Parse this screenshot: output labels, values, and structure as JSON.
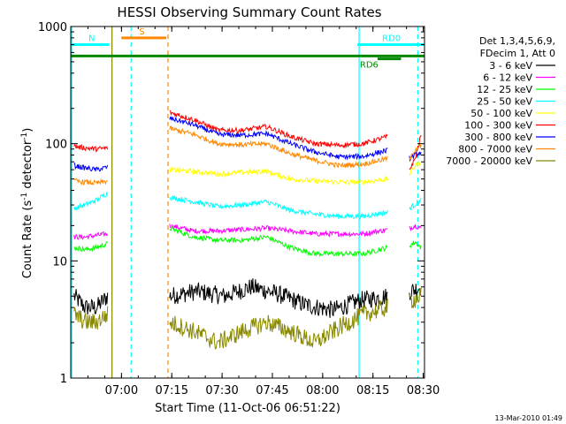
{
  "chart_data": {
    "type": "line",
    "title": "HESSI Observing Summary Count Rates",
    "xlabel": "Start Time (11-Oct-06 06:51:22)",
    "ylabel_parts": [
      "Count Rate (s",
      "-1",
      " detector",
      "-1",
      ")"
    ],
    "yscale": "log",
    "ylim": [
      1,
      1000
    ],
    "xlim_minutes": [
      -6.5,
      99
    ],
    "x_ticks": [
      {
        "label": "07:00",
        "t": 8.63
      },
      {
        "label": "07:15",
        "t": 23.63
      },
      {
        "label": "07:30",
        "t": 38.63
      },
      {
        "label": "07:45",
        "t": 53.63
      },
      {
        "label": "08:00",
        "t": 68.63
      },
      {
        "label": "08:15",
        "t": 83.63
      },
      {
        "label": "08:30",
        "t": 98.63
      }
    ],
    "y_ticks": [
      {
        "label": "1",
        "v": 1
      },
      {
        "label": "10",
        "v": 10
      },
      {
        "label": "100",
        "v": 100
      },
      {
        "label": "1000",
        "v": 1000
      }
    ],
    "legend_header": [
      "Det 1,3,4,5,6,9,",
      "FDecim 1, Att 0"
    ],
    "series": [
      {
        "name": "3 - 6 keV",
        "color": "#000000",
        "seg1": [
          5,
          4,
          4,
          5
        ],
        "seg2": [
          5,
          5.5,
          5,
          6,
          5.2,
          4.2,
          3.8,
          4.6,
          5
        ],
        "seg3": [
          5.5,
          6
        ]
      },
      {
        "name": "6 - 12 keV",
        "color": "#ff00ff",
        "seg1": [
          16,
          16,
          16.5,
          17
        ],
        "seg2": [
          20,
          18,
          18,
          18.5,
          19,
          18,
          17,
          17,
          17,
          18.5
        ],
        "seg3": [
          19,
          20,
          19
        ]
      },
      {
        "name": "12 - 25 keV",
        "color": "#00ff00",
        "seg1": [
          13,
          12.5,
          13,
          14
        ],
        "seg2": [
          19,
          16,
          15,
          15,
          16,
          13,
          11.5,
          11.5,
          11.5,
          13
        ],
        "seg3": [
          13.5,
          14.5,
          13
        ]
      },
      {
        "name": "25 - 50 keV",
        "color": "#00ffff",
        "seg1": [
          28,
          30,
          33,
          38
        ],
        "seg2": [
          35,
          32,
          29,
          30,
          32,
          27,
          25,
          24,
          24,
          26
        ],
        "seg3": [
          28,
          33
        ]
      },
      {
        "name": "50 - 100 keV",
        "color": "#ffff00",
        "seg1": [],
        "seg2": [
          60,
          58,
          55,
          57,
          58,
          50,
          48,
          47,
          47,
          50
        ],
        "seg3": [
          55,
          65,
          70
        ]
      },
      {
        "name": "100 - 300 keV",
        "color": "#ff0000",
        "seg1": [
          95,
          92,
          90,
          92
        ],
        "seg2": [
          185,
          160,
          130,
          130,
          140,
          115,
          100,
          97,
          100,
          115
        ],
        "seg3": [
          60,
          75,
          120
        ]
      },
      {
        "name": "300 - 800 keV",
        "color": "#0000ff",
        "seg1": [
          65,
          62,
          60,
          63
        ],
        "seg2": [
          165,
          145,
          120,
          118,
          122,
          100,
          85,
          77,
          78,
          88
        ],
        "seg3": [
          75,
          85
        ]
      },
      {
        "name": "800 - 7000 keV",
        "color": "#ff8800",
        "seg1": [
          48,
          47,
          46,
          48
        ],
        "seg2": [
          135,
          120,
          100,
          98,
          100,
          82,
          72,
          65,
          67,
          75
        ],
        "seg3": [
          72,
          90,
          95
        ]
      },
      {
        "name": "7000 - 20000 keV",
        "color": "#888800",
        "seg1": [
          3.5,
          3,
          3,
          3.5
        ],
        "seg2": [
          3,
          2.5,
          2,
          2.5,
          3,
          2.5,
          2,
          2.7,
          3.5,
          4
        ],
        "seg3": [
          4.5,
          5
        ]
      }
    ],
    "annotations": [
      {
        "label": "S",
        "color": "#ff8800",
        "t0": 8.6,
        "t1": 22.0,
        "v": 800
      },
      {
        "label": "N",
        "color": "#00ffff",
        "t0": -6.5,
        "t1": 5.0,
        "v": 700
      },
      {
        "label": "RD0",
        "color": "#00ffff",
        "t0": 79.0,
        "t1": 99.0,
        "v": 700
      },
      {
        "label": "RD6",
        "color": "#008800",
        "t0": 85.0,
        "t1": 92.0,
        "v": 530
      }
    ],
    "vertical_markers": [
      {
        "t": -6.2,
        "color": "#00ffff",
        "style": "solid"
      },
      {
        "t": 5.8,
        "color": "#888800",
        "style": "solid"
      },
      {
        "t": 11.5,
        "color": "#00ffff",
        "style": "dashed"
      },
      {
        "t": 22.5,
        "color": "#ff8800",
        "style": "dashed"
      },
      {
        "t": 79.5,
        "color": "#00ffff",
        "style": "solid"
      },
      {
        "t": 97.0,
        "color": "#00ffff",
        "style": "dashed"
      }
    ]
  },
  "footer": {
    "timestamp": "13-Mar-2010 01:49"
  }
}
